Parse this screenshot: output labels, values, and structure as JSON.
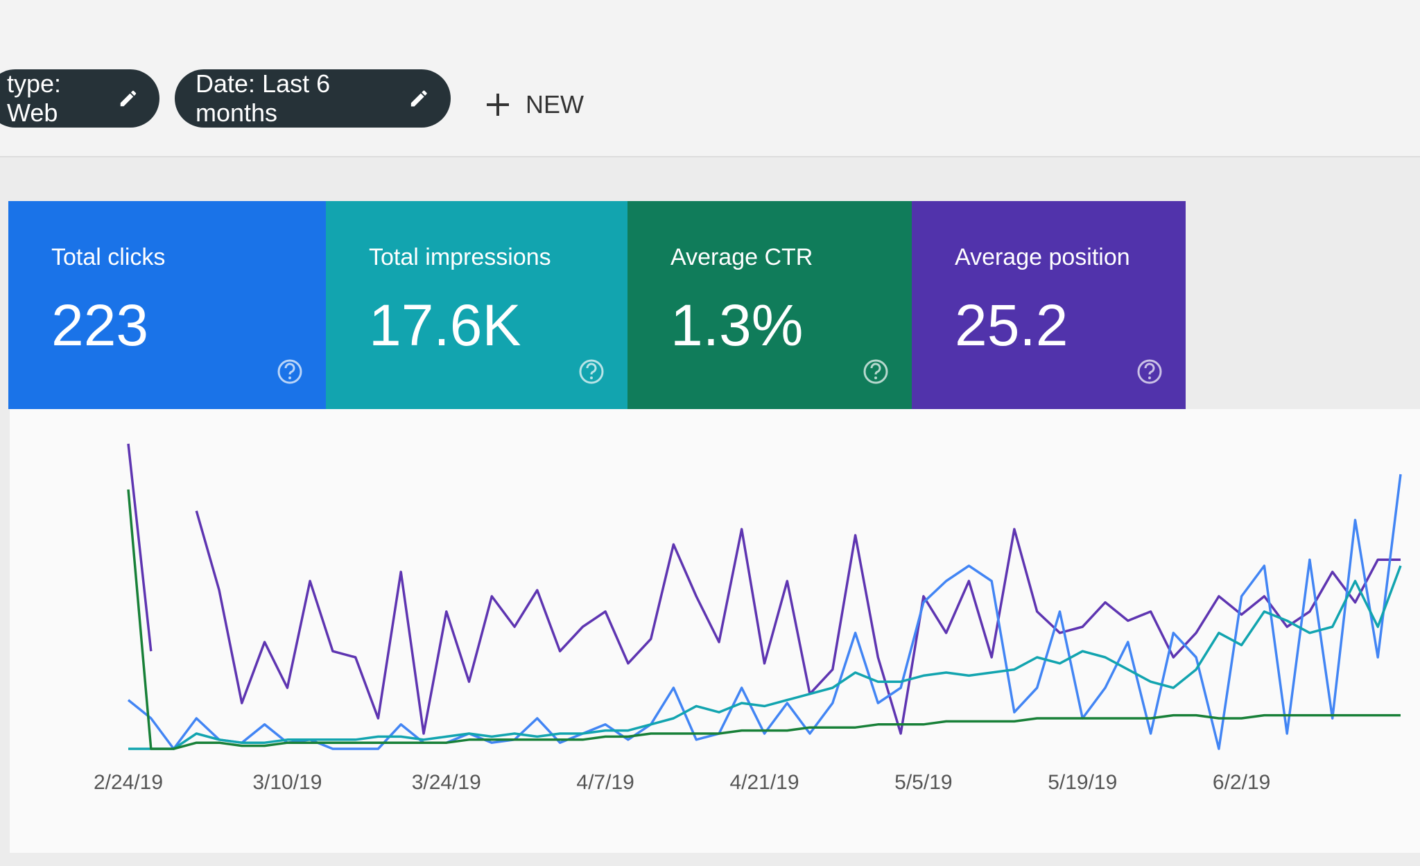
{
  "filters": [
    {
      "label": "type: Web"
    },
    {
      "label": "Date: Last 6 months"
    }
  ],
  "new_button": "NEW",
  "metrics": [
    {
      "label": "Total clicks",
      "value": "223",
      "color": "#1a73e8"
    },
    {
      "label": "Total impressions",
      "value": "17.6K",
      "color": "#12a4af"
    },
    {
      "label": "Average CTR",
      "value": "1.3%",
      "color": "#107c5a"
    },
    {
      "label": "Average position",
      "value": "25.2",
      "color": "#5133ab"
    }
  ],
  "chart_data": {
    "type": "line",
    "categories": [
      "2/24/19",
      null,
      null,
      null,
      null,
      null,
      null,
      "3/10/19",
      null,
      null,
      null,
      null,
      null,
      null,
      "3/24/19",
      null,
      null,
      null,
      null,
      null,
      null,
      "4/7/19",
      null,
      null,
      null,
      null,
      null,
      null,
      "4/21/19",
      null,
      null,
      null,
      null,
      null,
      null,
      "5/5/19",
      null,
      null,
      null,
      null,
      null,
      null,
      "5/19/19",
      null,
      null,
      null,
      null,
      null,
      null,
      "6/2/19",
      null,
      null,
      null,
      null,
      null,
      null,
      null
    ],
    "ylim": [
      0,
      100
    ],
    "series": [
      {
        "color": "#5e35b1",
        "values": [
          100,
          32,
          null,
          78,
          52,
          15,
          35,
          20,
          55,
          32,
          30,
          10,
          58,
          5,
          45,
          22,
          50,
          40,
          52,
          32,
          40,
          45,
          28,
          36,
          67,
          50,
          35,
          72,
          28,
          55,
          18,
          26,
          70,
          30,
          5,
          50,
          38,
          55,
          30,
          72,
          45,
          38,
          40,
          48,
          42,
          45,
          30,
          38,
          50,
          44,
          50,
          40,
          45,
          58,
          48,
          62,
          62
        ]
      },
      {
        "color": "#4285f4",
        "values": [
          16,
          10,
          0,
          10,
          3,
          2,
          8,
          2,
          3,
          0,
          0,
          0,
          8,
          2,
          2,
          5,
          2,
          3,
          10,
          2,
          5,
          8,
          3,
          8,
          20,
          3,
          5,
          20,
          5,
          15,
          5,
          15,
          38,
          15,
          20,
          48,
          55,
          60,
          55,
          12,
          20,
          45,
          10,
          20,
          35,
          5,
          38,
          30,
          0,
          50,
          60,
          5,
          62,
          10,
          75,
          30,
          90
        ]
      },
      {
        "color": "#12a4af",
        "values": [
          0,
          0,
          0,
          5,
          3,
          2,
          2,
          3,
          3,
          3,
          3,
          4,
          4,
          3,
          4,
          5,
          4,
          5,
          4,
          5,
          5,
          6,
          6,
          8,
          10,
          14,
          12,
          15,
          14,
          16,
          18,
          20,
          25,
          22,
          22,
          24,
          25,
          24,
          25,
          26,
          30,
          28,
          32,
          30,
          26,
          22,
          20,
          26,
          38,
          34,
          45,
          42,
          38,
          40,
          55,
          40,
          60
        ]
      },
      {
        "color": "#188038",
        "values": [
          85,
          0,
          0,
          2,
          2,
          1,
          1,
          2,
          2,
          2,
          2,
          2,
          2,
          2,
          2,
          3,
          3,
          3,
          3,
          3,
          3,
          4,
          4,
          5,
          5,
          5,
          5,
          6,
          6,
          6,
          7,
          7,
          7,
          8,
          8,
          8,
          9,
          9,
          9,
          9,
          10,
          10,
          10,
          10,
          10,
          10,
          11,
          11,
          10,
          10,
          11,
          11,
          11,
          11,
          11,
          11,
          11
        ]
      }
    ]
  }
}
